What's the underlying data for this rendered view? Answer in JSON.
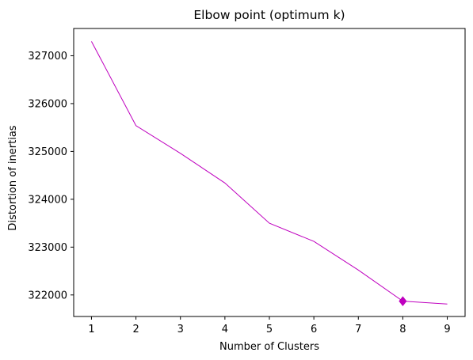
{
  "chart_data": {
    "type": "line",
    "title": "Elbow point (optimum k)",
    "xlabel": "Number of Clusters",
    "ylabel": "Distortion of inertias",
    "x": [
      1,
      2,
      3,
      4,
      5,
      6,
      7,
      8,
      9
    ],
    "series": [
      {
        "values": [
          327300,
          325540,
          324960,
          324340,
          323500,
          323120,
          322520,
          321870,
          321810
        ],
        "color": "#bf00bf"
      }
    ],
    "highlight": {
      "x": 8,
      "y": 321870,
      "marker": "diamond",
      "color": "#bf00bf"
    },
    "xticks": [
      1,
      2,
      3,
      4,
      5,
      6,
      7,
      8,
      9
    ],
    "yticks": [
      322000,
      323000,
      324000,
      325000,
      326000,
      327000
    ],
    "xlim": [
      0.6,
      9.4
    ],
    "ylim": [
      321550,
      327570
    ],
    "grid": false,
    "legend": "none"
  }
}
